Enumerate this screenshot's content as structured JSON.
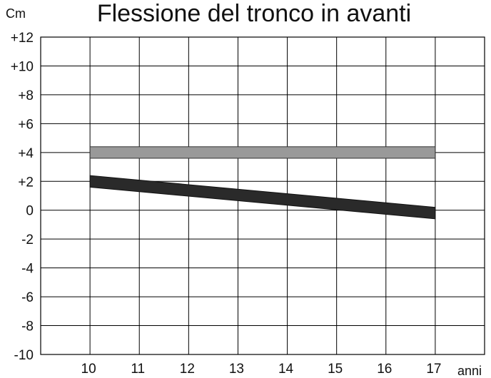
{
  "chart_data": {
    "type": "line",
    "title": "Flessione del tronco in avanti",
    "ylabel": "Cm",
    "xlabel": "anni",
    "x": [
      10,
      11,
      12,
      13,
      14,
      15,
      16,
      17
    ],
    "xlim": [
      9,
      18
    ],
    "ylim": [
      -10,
      12
    ],
    "y_tick_labels": [
      "+12",
      "+10",
      "+8",
      "+6",
      "+4",
      "+2",
      "0",
      "-2",
      "-4",
      "-6",
      "-8",
      "-10"
    ],
    "y_tick_values": [
      12,
      10,
      8,
      6,
      4,
      2,
      0,
      -2,
      -4,
      -6,
      -8,
      -10
    ],
    "x_tick_labels": [
      "10",
      "11",
      "12",
      "13",
      "14",
      "15",
      "16",
      "17"
    ],
    "grid": true,
    "series": [
      {
        "color": "#999999",
        "outline": "#333333",
        "points": [
          [
            10,
            4.0
          ],
          [
            17,
            4.0
          ]
        ],
        "thickness_data": 0.8
      },
      {
        "color": "#2a2a2a",
        "outline": "#111111",
        "points": [
          [
            10,
            2.0
          ],
          [
            17,
            -0.2
          ]
        ],
        "thickness_data": 0.8
      }
    ]
  }
}
